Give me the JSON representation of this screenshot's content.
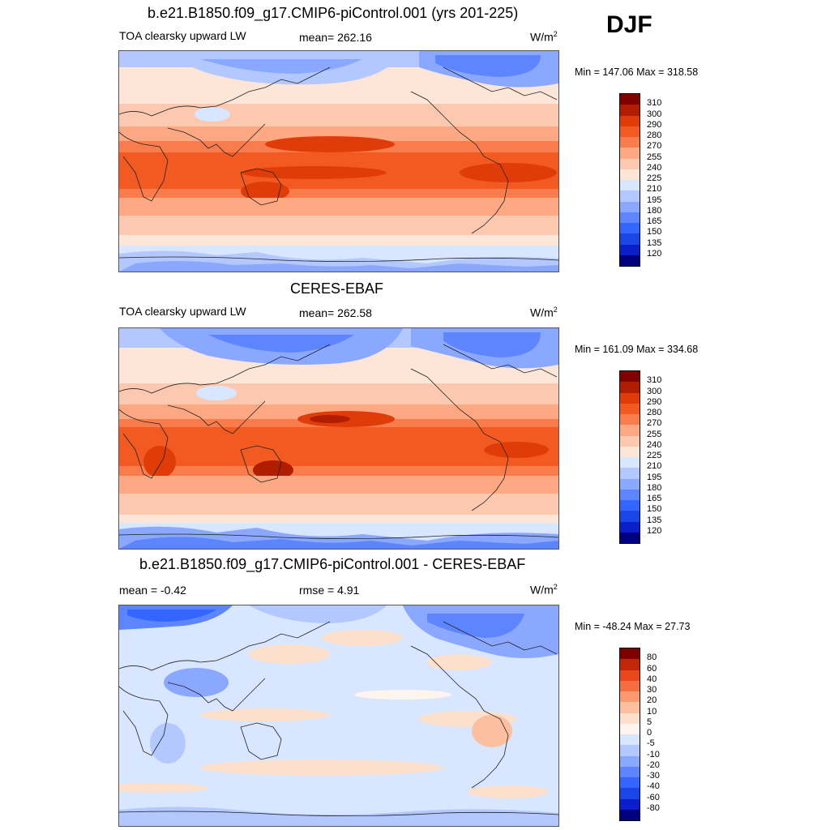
{
  "header": {
    "season": "DJF"
  },
  "panels": [
    {
      "title": "b.e21.B1850.f09_g17.CMIP6-piControl.001 (yrs 201-225)",
      "left_label": "TOA clearsky upward LW",
      "center_label": "mean= 262.16",
      "units": "W/m",
      "units_exp": "2",
      "minmax": "Min = 147.06 Max = 318.58",
      "colorbar": {
        "colors": [
          "#000080",
          "#0a1ecc",
          "#1a46e6",
          "#3366ff",
          "#5c85ff",
          "#8aa8ff",
          "#b3c8ff",
          "#d9e6ff",
          "#fde6d8",
          "#fcc9b0",
          "#fca882",
          "#f97c4d",
          "#f25a22",
          "#e03c0a",
          "#b01d00",
          "#800000"
        ],
        "labels": [
          "120",
          "135",
          "150",
          "165",
          "180",
          "195",
          "210",
          "225",
          "240",
          "255",
          "270",
          "280",
          "290",
          "300",
          "310"
        ]
      }
    },
    {
      "title": "CERES-EBAF",
      "left_label": "TOA clearsky upward LW",
      "center_label": "mean= 262.58",
      "units": "W/m",
      "units_exp": "2",
      "minmax": "Min = 161.09 Max = 334.68",
      "colorbar": {
        "colors": [
          "#000080",
          "#0a1ecc",
          "#1a46e6",
          "#3366ff",
          "#5c85ff",
          "#8aa8ff",
          "#b3c8ff",
          "#d9e6ff",
          "#fde6d8",
          "#fcc9b0",
          "#fca882",
          "#f97c4d",
          "#f25a22",
          "#e03c0a",
          "#b01d00",
          "#800000"
        ],
        "labels": [
          "120",
          "135",
          "150",
          "165",
          "180",
          "195",
          "210",
          "225",
          "240",
          "255",
          "270",
          "280",
          "290",
          "300",
          "310"
        ]
      }
    },
    {
      "title": "b.e21.B1850.f09_g17.CMIP6-piControl.001 - CERES-EBAF",
      "left_label": "mean =  -0.42",
      "center_label": "rmse =   4.91",
      "units": "W/m",
      "units_exp": "2",
      "minmax": "Min = -48.24 Max =  27.73",
      "colorbar": {
        "colors": [
          "#000080",
          "#0a1ecc",
          "#1a46e6",
          "#3366ff",
          "#5c85ff",
          "#8aa8ff",
          "#b3c8ff",
          "#d9e6ff",
          "#fff5ee",
          "#fde0cc",
          "#fcc0a0",
          "#fa9870",
          "#f56e40",
          "#e8481c",
          "#c02808",
          "#800000"
        ],
        "labels": [
          "-80",
          "-60",
          "-40",
          "-30",
          "-20",
          "-10",
          "-5",
          "0",
          "5",
          "10",
          "20",
          "30",
          "40",
          "60",
          "80"
        ]
      }
    }
  ]
}
